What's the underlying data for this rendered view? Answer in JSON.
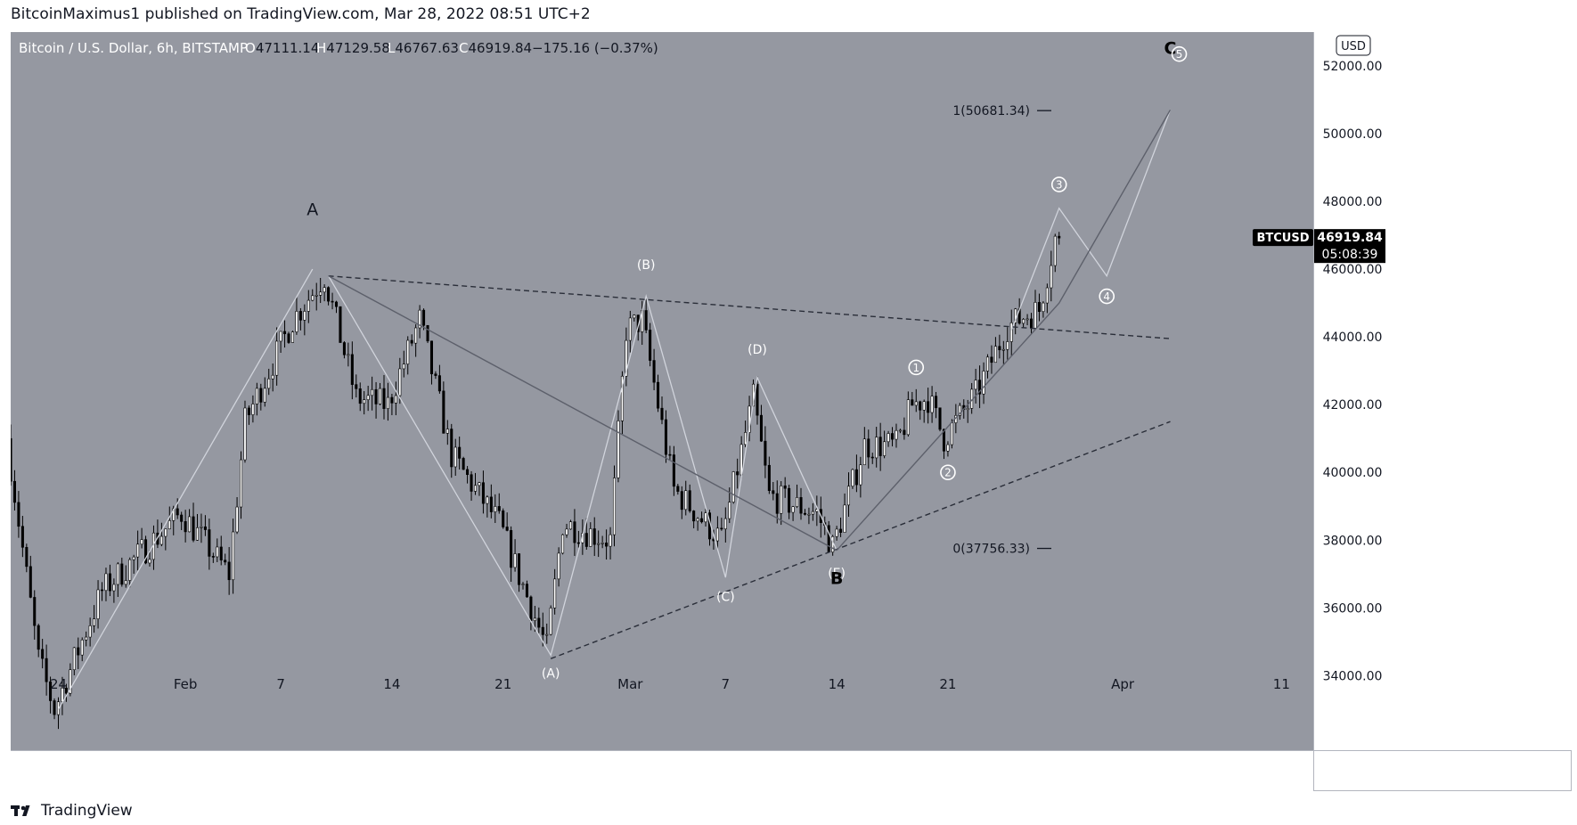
{
  "header": {
    "publisher": "BitcoinMaximus1 published on TradingView.com, Mar 28, 2022 08:51 UTC+2"
  },
  "footer": {
    "brand": "TradingView",
    "logo_icon": "tradingview-logo-icon"
  },
  "colors": {
    "background": "#9598a1",
    "candle_up": "#ffffff",
    "candle_down": "#000000",
    "wave_lines": "#d1d4dc",
    "trend_lines": "#5d606b",
    "axis_panel": "#ffffff",
    "price_label_bg": "#000000"
  },
  "chart_data": {
    "type": "candlestick",
    "symbol_line": {
      "name": "Bitcoin / U.S. Dollar, 6h, BITSTAMP",
      "o_label": "O",
      "o": "47111.14",
      "h_label": "H",
      "h": "47129.58",
      "l_label": "L",
      "l": "46767.63",
      "c_label": "C",
      "c": "46919.84",
      "change": "−175.16 (−0.37%)"
    },
    "currency_badge": "USD",
    "last_price": {
      "ticker": "BTCUSD",
      "price": "46919.84",
      "countdown": "05:08:39",
      "value": 46919.84
    },
    "y_range": [
      31800,
      53000
    ],
    "y_ticks": [
      "34000.00",
      "36000.00",
      "38000.00",
      "40000.00",
      "42000.00",
      "44000.00",
      "46000.00",
      "48000.00",
      "50000.00",
      "52000.00"
    ],
    "x_range": [
      "2022-01-21",
      "2022-04-13"
    ],
    "x_ticks": [
      {
        "label": "24",
        "date": "2022-01-24"
      },
      {
        "label": "Feb",
        "date": "2022-02-01"
      },
      {
        "label": "7",
        "date": "2022-02-07"
      },
      {
        "label": "14",
        "date": "2022-02-14"
      },
      {
        "label": "21",
        "date": "2022-02-21"
      },
      {
        "label": "Mar",
        "date": "2022-03-01"
      },
      {
        "label": "7",
        "date": "2022-03-07"
      },
      {
        "label": "14",
        "date": "2022-03-14"
      },
      {
        "label": "21",
        "date": "2022-03-21"
      },
      {
        "label": "Apr",
        "date": "2022-04-01"
      },
      {
        "label": "11",
        "date": "2022-04-11"
      }
    ],
    "key_prices": [
      {
        "date": "2022-01-21",
        "price": 41000
      },
      {
        "date": "2022-01-23",
        "price": 34500
      },
      {
        "date": "2022-01-24",
        "price": 33000
      },
      {
        "date": "2022-01-27",
        "price": 36500
      },
      {
        "date": "2022-02-01",
        "price": 38800
      },
      {
        "date": "2022-02-04",
        "price": 37000
      },
      {
        "date": "2022-02-05",
        "price": 41500
      },
      {
        "date": "2022-02-08",
        "price": 44500
      },
      {
        "date": "2022-02-10",
        "price": 45800
      },
      {
        "date": "2022-02-12",
        "price": 42200
      },
      {
        "date": "2022-02-14",
        "price": 42000
      },
      {
        "date": "2022-02-16",
        "price": 44500
      },
      {
        "date": "2022-02-18",
        "price": 40500
      },
      {
        "date": "2022-02-21",
        "price": 38500
      },
      {
        "date": "2022-02-24",
        "price": 34800
      },
      {
        "date": "2022-02-25",
        "price": 38500
      },
      {
        "date": "2022-02-28",
        "price": 38000
      },
      {
        "date": "2022-03-01",
        "price": 44200
      },
      {
        "date": "2022-03-02",
        "price": 44500
      },
      {
        "date": "2022-03-04",
        "price": 39500
      },
      {
        "date": "2022-03-07",
        "price": 38000
      },
      {
        "date": "2022-03-09",
        "price": 42200
      },
      {
        "date": "2022-03-10",
        "price": 39300
      },
      {
        "date": "2022-03-13",
        "price": 38800
      },
      {
        "date": "2022-03-14",
        "price": 37800
      },
      {
        "date": "2022-03-16",
        "price": 40800
      },
      {
        "date": "2022-03-18",
        "price": 40800
      },
      {
        "date": "2022-03-19",
        "price": 42000
      },
      {
        "date": "2022-03-20",
        "price": 42200
      },
      {
        "date": "2022-03-21",
        "price": 41000
      },
      {
        "date": "2022-03-23",
        "price": 42300
      },
      {
        "date": "2022-03-25",
        "price": 44300
      },
      {
        "date": "2022-03-26",
        "price": 44600
      },
      {
        "date": "2022-03-27",
        "price": 44800
      },
      {
        "date": "2022-03-28",
        "price": 46919.84
      }
    ],
    "fib_levels": [
      {
        "label": "1(50681.34)",
        "value": 50681.34
      },
      {
        "label": "0(37756.33)",
        "value": 37756.33
      }
    ],
    "trendlines": [
      {
        "name": "triangle-upper-line",
        "style": "dashed",
        "points": [
          {
            "date": "2022-02-10",
            "price": 45800
          },
          {
            "date": "2022-04-04",
            "price": 43950
          }
        ]
      },
      {
        "name": "triangle-lower-line",
        "style": "dashed",
        "points": [
          {
            "date": "2022-02-24",
            "price": 34500
          },
          {
            "date": "2022-04-04",
            "price": 41500
          }
        ]
      },
      {
        "name": "zigzag-a-to-b",
        "style": "solid",
        "points": [
          {
            "date": "2022-02-10",
            "price": 45800
          },
          {
            "date": "2022-03-14",
            "price": 37700
          }
        ]
      },
      {
        "name": "wave-upper-diagonal",
        "style": "solid",
        "points": [
          {
            "date": "2022-03-14",
            "price": 37700
          },
          {
            "date": "2022-03-28",
            "price": 45000
          },
          {
            "date": "2022-04-04",
            "price": 50700
          }
        ]
      }
    ],
    "wave_paths": [
      {
        "name": "wave-path-c-leg",
        "points": [
          {
            "date": "2022-01-24",
            "price": 33000
          },
          {
            "date": "2022-02-09",
            "price": 46000
          }
        ]
      },
      {
        "name": "wave-path-abcde",
        "points": [
          {
            "date": "2022-02-10",
            "price": 45800
          },
          {
            "date": "2022-02-24",
            "price": 34600
          },
          {
            "date": "2022-03-02",
            "price": 45200
          },
          {
            "date": "2022-03-07",
            "price": 36900
          },
          {
            "date": "2022-03-09",
            "price": 42800
          },
          {
            "date": "2022-03-14",
            "price": 37700
          }
        ]
      },
      {
        "name": "wave-path-projection",
        "points": [
          {
            "date": "2022-03-25",
            "price": 44200
          },
          {
            "date": "2022-03-28",
            "price": 47800
          },
          {
            "date": "2022-03-31",
            "price": 45800
          },
          {
            "date": "2022-04-04",
            "price": 50700
          }
        ]
      }
    ],
    "annotations": [
      {
        "name": "label-big-a",
        "text": "A",
        "date": "2022-02-09",
        "price": 47600,
        "style": "big"
      },
      {
        "name": "label-wave-a",
        "text": "(A)",
        "date": "2022-02-24",
        "price": 33950,
        "style": "paren"
      },
      {
        "name": "label-wave-b",
        "text": "(B)",
        "date": "2022-03-02",
        "price": 46000,
        "style": "paren"
      },
      {
        "name": "label-wave-c",
        "text": "(C)",
        "date": "2022-03-07",
        "price": 36200,
        "style": "paren"
      },
      {
        "name": "label-wave-d",
        "text": "(D)",
        "date": "2022-03-09",
        "price": 43500,
        "style": "paren"
      },
      {
        "name": "label-wave-e",
        "text": "(E)",
        "date": "2022-03-14",
        "price": 36900,
        "style": "paren"
      },
      {
        "name": "label-big-b",
        "text": "B",
        "date": "2022-03-14",
        "price": 36700,
        "style": "bigdark"
      },
      {
        "name": "label-big-c",
        "text": "C",
        "date": "2022-04-04",
        "price": 52350,
        "style": "bigdark"
      },
      {
        "name": "label-circle-1",
        "text": "1",
        "date": "2022-03-19",
        "price": 43100,
        "style": "circle"
      },
      {
        "name": "label-circle-2",
        "text": "2",
        "date": "2022-03-21",
        "price": 40000,
        "style": "circle"
      },
      {
        "name": "label-circle-3",
        "text": "3",
        "date": "2022-03-28",
        "price": 48500,
        "style": "circle"
      },
      {
        "name": "label-circle-4",
        "text": "4",
        "date": "2022-03-31",
        "price": 45200,
        "style": "circle"
      },
      {
        "name": "label-circle-5",
        "text": "5",
        "date": "2022-04-04",
        "price": 52350,
        "style": "circle"
      }
    ]
  }
}
